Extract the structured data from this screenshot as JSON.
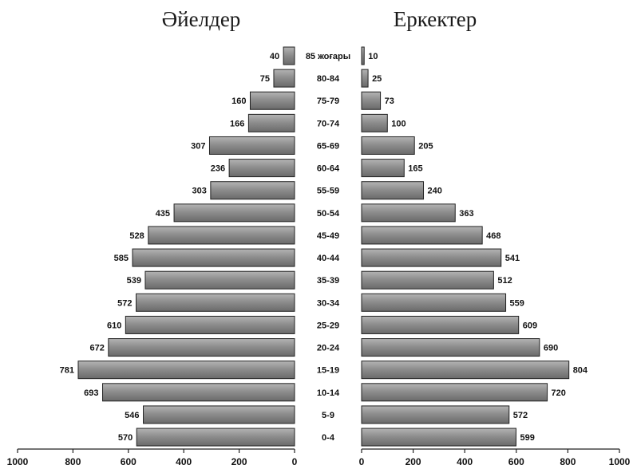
{
  "chart_data": {
    "type": "bar",
    "orientation": "horizontal",
    "layout": "population-pyramid",
    "bar_color": "#8c8c8c",
    "categories": [
      "85 жоғары",
      "80-84",
      "75-79",
      "70-74",
      "65-69",
      "60-64",
      "55-59",
      "50-54",
      "45-49",
      "40-44",
      "35-39",
      "30-34",
      "25-29",
      "20-24",
      "15-19",
      "10-14",
      "5-9",
      "0-4"
    ],
    "series": [
      {
        "name": "Әйелдер",
        "side": "left",
        "values": [
          40,
          75,
          160,
          166,
          307,
          236,
          303,
          435,
          528,
          585,
          539,
          572,
          610,
          672,
          781,
          693,
          546,
          570
        ]
      },
      {
        "name": "Еркектер",
        "side": "right",
        "values": [
          10,
          25,
          73,
          100,
          205,
          165,
          240,
          363,
          468,
          541,
          512,
          559,
          609,
          690,
          804,
          720,
          572,
          599
        ]
      }
    ],
    "xlim": [
      0,
      1000
    ],
    "xticks": [
      0,
      200,
      400,
      600,
      800,
      1000
    ],
    "grid": false
  }
}
